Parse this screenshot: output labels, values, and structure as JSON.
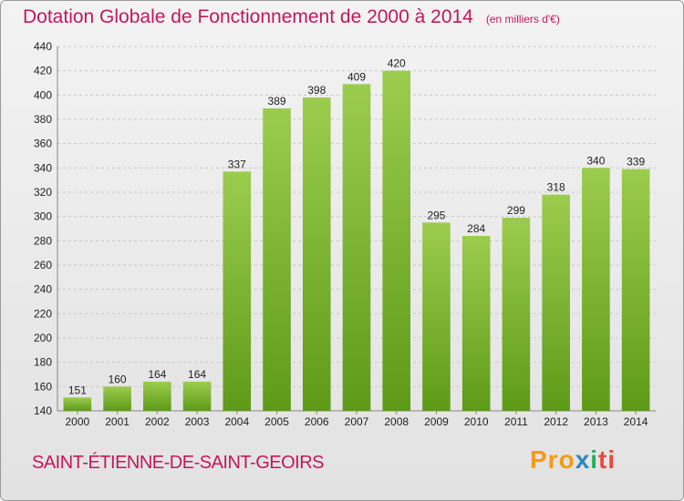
{
  "header": {
    "title": "Dotation Globale de Fonctionnement de 2000 à 2014",
    "unit": "(en milliers d'€)"
  },
  "footer": {
    "commune": "SAINT-ÉTIENNE-DE-SAINT-GEOIRS",
    "logo": [
      "Pro",
      "x",
      "i",
      "ti"
    ]
  },
  "colors": {
    "accent": "#c2185b",
    "bar_top": "#9ccc4e",
    "bar_bottom": "#5e9a18"
  },
  "chart_data": {
    "type": "bar",
    "title": "Dotation Globale de Fonctionnement de 2000 à 2014",
    "subtitle": "(en milliers d'€)",
    "xlabel": "",
    "ylabel": "",
    "categories": [
      "2000",
      "2001",
      "2002",
      "2003",
      "2004",
      "2005",
      "2006",
      "2007",
      "2008",
      "2009",
      "2010",
      "2011",
      "2012",
      "2013",
      "2014"
    ],
    "values": [
      151,
      160,
      164,
      164,
      337,
      389,
      398,
      409,
      420,
      295,
      284,
      299,
      318,
      340,
      339
    ],
    "ylim": [
      140,
      440
    ],
    "yticks": [
      140,
      160,
      180,
      200,
      220,
      240,
      260,
      280,
      300,
      320,
      340,
      360,
      380,
      400,
      420,
      440
    ],
    "grid": true,
    "legend": "none"
  }
}
